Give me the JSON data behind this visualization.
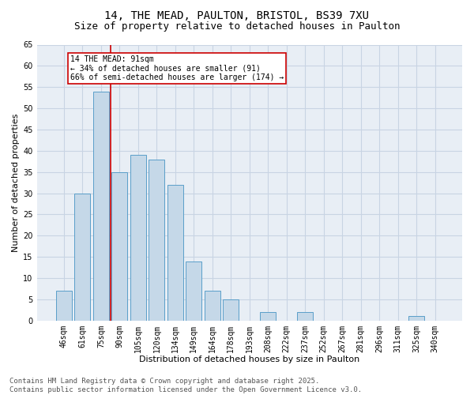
{
  "title_line1": "14, THE MEAD, PAULTON, BRISTOL, BS39 7XU",
  "title_line2": "Size of property relative to detached houses in Paulton",
  "xlabel": "Distribution of detached houses by size in Paulton",
  "ylabel": "Number of detached properties",
  "categories": [
    "46sqm",
    "61sqm",
    "75sqm",
    "90sqm",
    "105sqm",
    "120sqm",
    "134sqm",
    "149sqm",
    "164sqm",
    "178sqm",
    "193sqm",
    "208sqm",
    "222sqm",
    "237sqm",
    "252sqm",
    "267sqm",
    "281sqm",
    "296sqm",
    "311sqm",
    "325sqm",
    "340sqm"
  ],
  "values": [
    7,
    30,
    54,
    35,
    39,
    38,
    32,
    14,
    7,
    5,
    0,
    2,
    0,
    2,
    0,
    0,
    0,
    0,
    0,
    1,
    0
  ],
  "bar_color": "#c5d8e8",
  "bar_edgecolor": "#5a9ec9",
  "vline_color": "#cc0000",
  "annotation_box_text": "14 THE MEAD: 91sqm\n← 34% of detached houses are smaller (91)\n66% of semi-detached houses are larger (174) →",
  "annotation_fontsize": 7,
  "box_edgecolor": "#cc0000",
  "ylim": [
    0,
    65
  ],
  "yticks": [
    0,
    5,
    10,
    15,
    20,
    25,
    30,
    35,
    40,
    45,
    50,
    55,
    60,
    65
  ],
  "grid_color": "#c8d4e3",
  "background_color": "#e8eef5",
  "footer_text": "Contains HM Land Registry data © Crown copyright and database right 2025.\nContains public sector information licensed under the Open Government Licence v3.0.",
  "title_fontsize": 10,
  "subtitle_fontsize": 9,
  "xlabel_fontsize": 8,
  "ylabel_fontsize": 8,
  "tick_fontsize": 7,
  "footer_fontsize": 6.5
}
